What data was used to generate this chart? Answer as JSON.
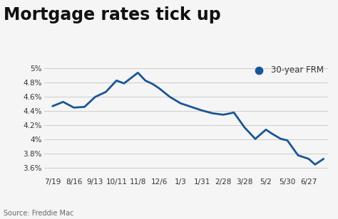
{
  "title": "Mortgage rates tick up",
  "source": "Source: Freddie Mac",
  "legend_label": "30-year FRM",
  "line_color": "#1a5596",
  "legend_dot_color": "#1a5596",
  "background_color": "#f5f5f5",
  "grid_color": "#cccccc",
  "title_color": "#111111",
  "label_color": "#333333",
  "source_color": "#666666",
  "x_labels": [
    "7/19",
    "8/16",
    "9/13",
    "10/11",
    "11/8",
    "12/6",
    "1/3",
    "1/31",
    "2/28",
    "3/28",
    "5/2",
    "5/30",
    "6/27"
  ],
  "ylim": [
    3.5,
    5.1
  ],
  "yticks": [
    3.6,
    3.8,
    4.0,
    4.2,
    4.4,
    4.6,
    4.8,
    5.0
  ],
  "title_fontsize": 17,
  "axis_fontsize": 7.5,
  "source_fontsize": 7.0,
  "legend_fontsize": 8.5,
  "line_width": 2.0,
  "x_data": [
    0,
    0.5,
    1.0,
    1.5,
    2.0,
    2.5,
    3.0,
    3.35,
    3.7,
    4.0,
    4.35,
    4.7,
    5.0,
    5.5,
    6.0,
    6.5,
    7.0,
    7.5,
    8.0,
    8.5,
    9.0,
    9.5,
    10.0,
    10.3,
    10.7,
    11.0,
    11.5,
    12.0,
    12.3,
    12.7
  ],
  "y_data": [
    4.47,
    4.53,
    4.45,
    4.46,
    4.6,
    4.67,
    4.83,
    4.79,
    4.87,
    4.94,
    4.83,
    4.78,
    4.72,
    4.6,
    4.51,
    4.46,
    4.41,
    4.37,
    4.35,
    4.38,
    4.17,
    4.01,
    4.14,
    4.08,
    4.01,
    3.99,
    3.78,
    3.73,
    3.65,
    3.73
  ]
}
